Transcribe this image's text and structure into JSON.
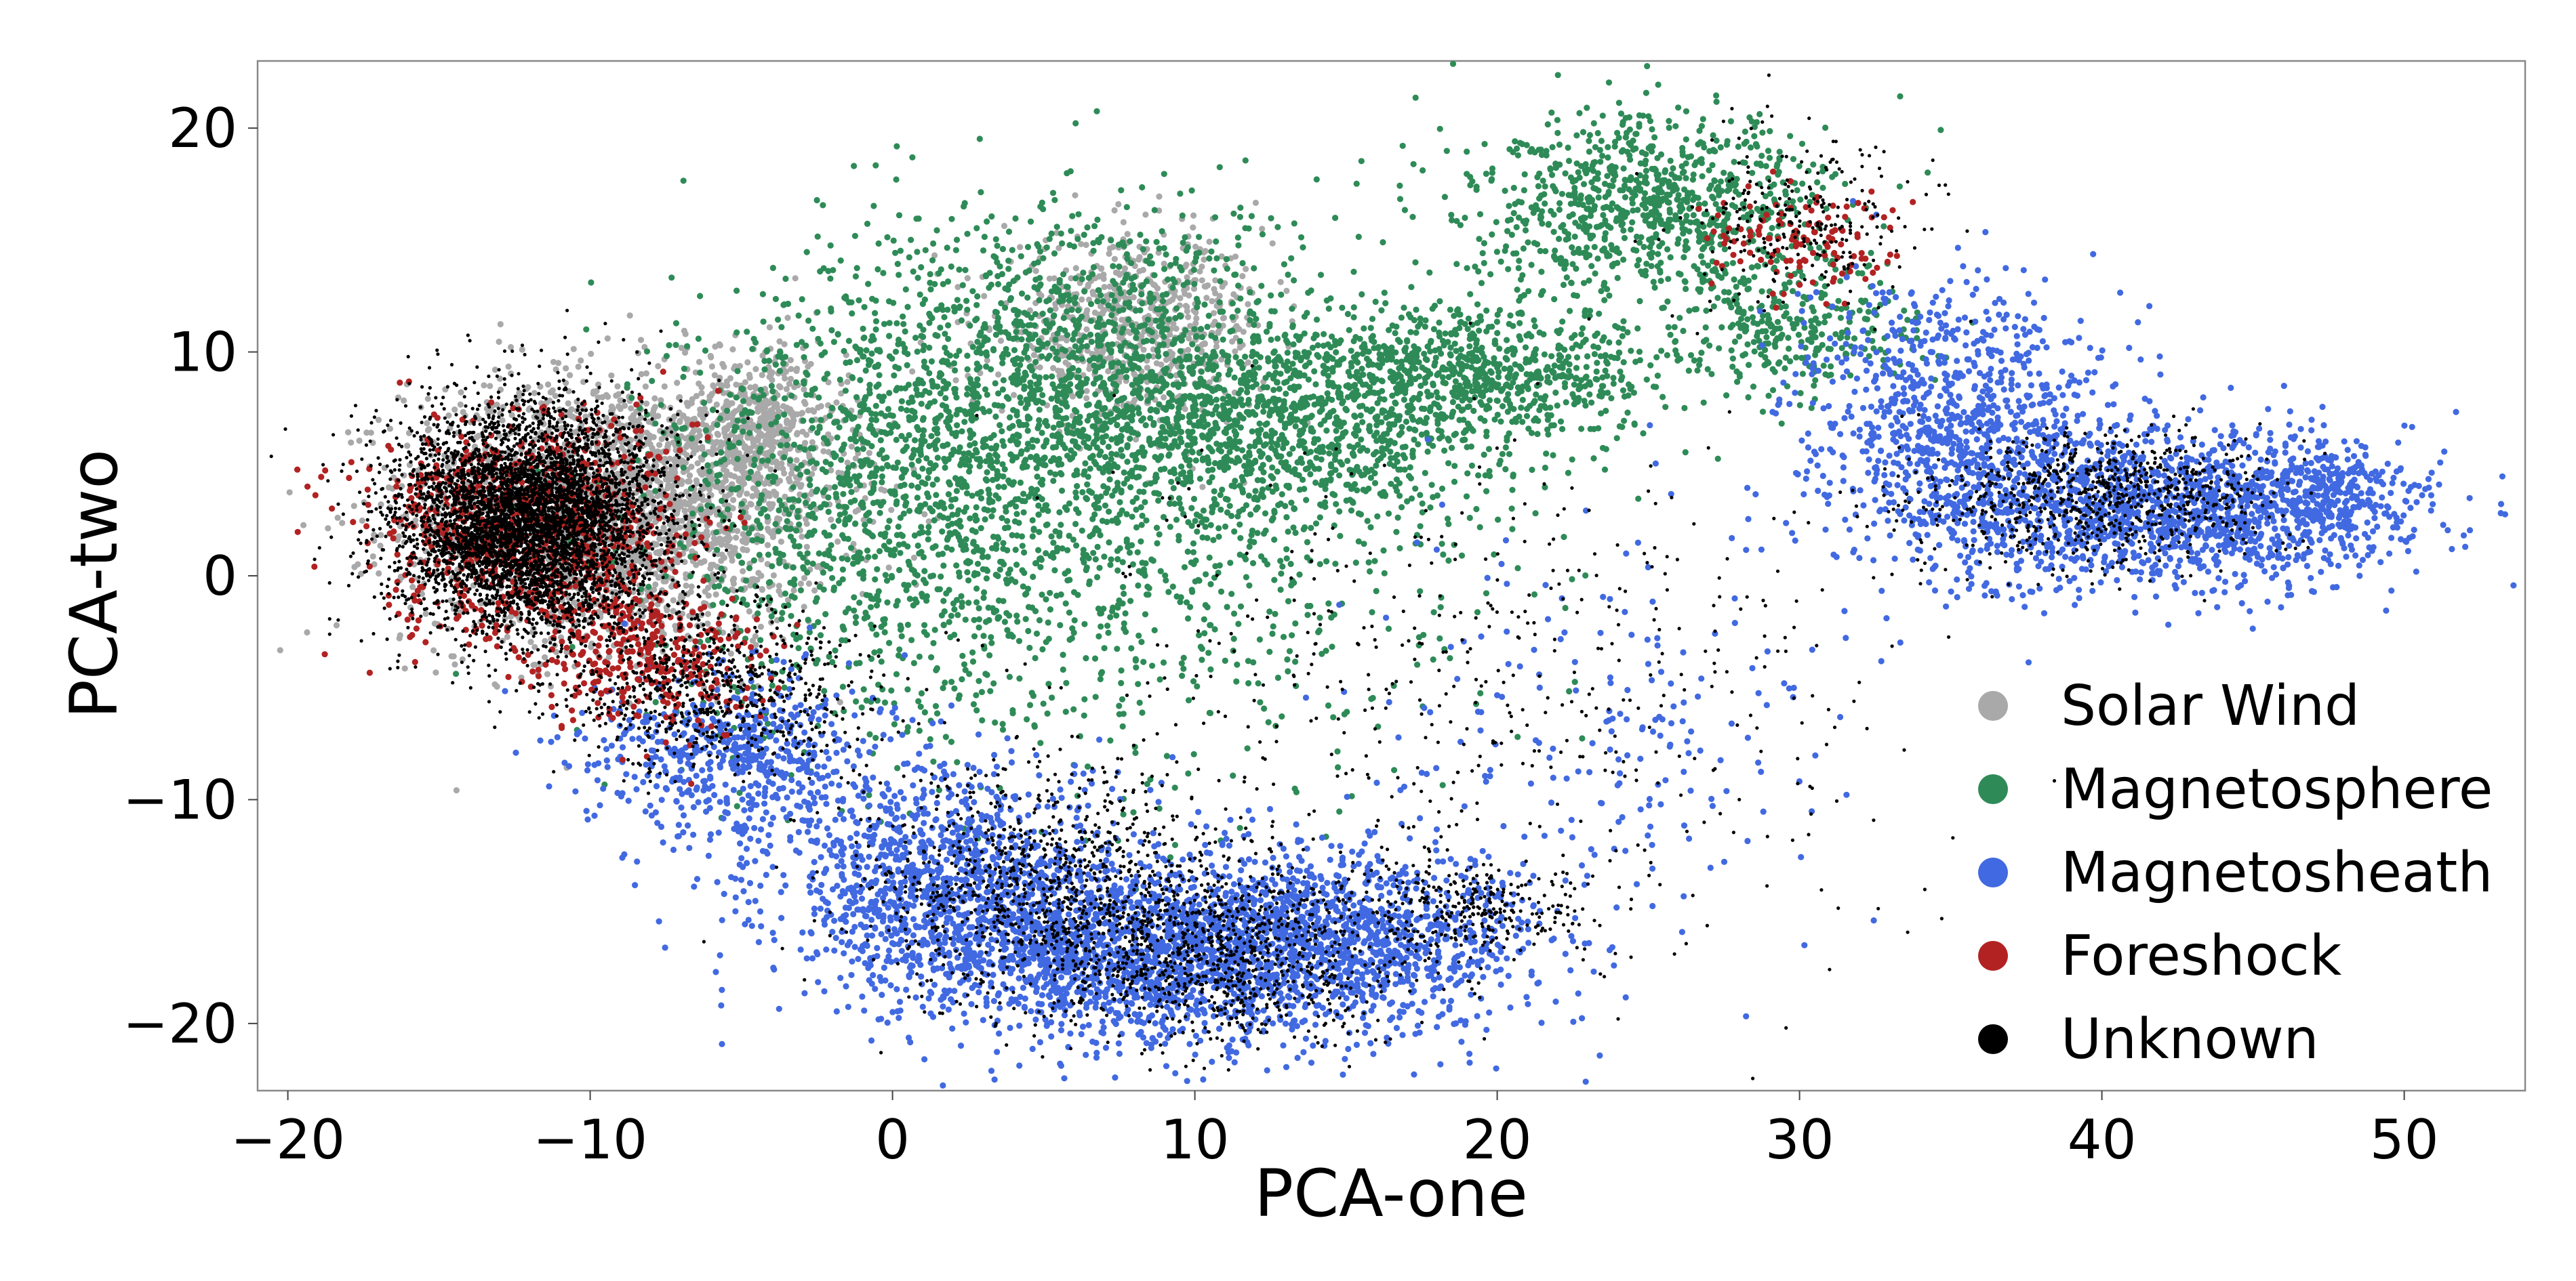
{
  "chart_data": {
    "type": "scatter",
    "title": "",
    "xlabel": "PCA-one",
    "ylabel": "PCA-two",
    "xlim": [
      -21,
      54
    ],
    "ylim": [
      -23,
      23
    ],
    "xticks": [
      -20,
      -10,
      0,
      10,
      20,
      30,
      40,
      50
    ],
    "yticks": [
      -20,
      -10,
      0,
      10,
      20
    ],
    "xtick_labels": [
      "−20",
      "−10",
      "0",
      "10",
      "20",
      "30",
      "40",
      "50"
    ],
    "ytick_labels": [
      "−20",
      "−10",
      "0",
      "10",
      "20"
    ],
    "grid": false,
    "legend_position": "lower-right",
    "series": [
      {
        "name": "Solar Wind",
        "color": "#a9a9a9",
        "clusters": [
          {
            "cx": -9,
            "cy": 3,
            "sx": 3.5,
            "sy": 3,
            "n": 2200
          },
          {
            "cx": -4.5,
            "cy": 6.5,
            "sx": 1.5,
            "sy": 1.8,
            "n": 500
          },
          {
            "cx": 8,
            "cy": 11,
            "sx": 2.2,
            "sy": 2,
            "n": 700
          }
        ]
      },
      {
        "name": "Magnetosphere",
        "color": "#2e8b57",
        "clusters": [
          {
            "cx": 0,
            "cy": 3,
            "sx": 4,
            "sy": 5,
            "n": 1400
          },
          {
            "cx": 6,
            "cy": 9,
            "sx": 4,
            "sy": 4,
            "n": 1300
          },
          {
            "cx": 13,
            "cy": 7,
            "sx": 3.5,
            "sy": 2.5,
            "n": 1100
          },
          {
            "cx": 20,
            "cy": 9,
            "sx": 3,
            "sy": 1.5,
            "n": 700
          },
          {
            "cx": 25,
            "cy": 16.5,
            "sx": 3,
            "sy": 2,
            "n": 900
          },
          {
            "cx": 30,
            "cy": 11,
            "sx": 2,
            "sy": 1.5,
            "n": 300
          },
          {
            "cx": 10,
            "cy": 0,
            "sx": 5,
            "sy": 5,
            "n": 500
          }
        ]
      },
      {
        "name": "Magnetosheath",
        "color": "#4169e1",
        "clusters": [
          {
            "cx": -5,
            "cy": -8,
            "sx": 2.5,
            "sy": 2,
            "n": 600
          },
          {
            "cx": 2,
            "cy": -14,
            "sx": 3,
            "sy": 2.5,
            "n": 1200
          },
          {
            "cx": 9,
            "cy": -17,
            "sx": 4,
            "sy": 2,
            "n": 1800
          },
          {
            "cx": 16,
            "cy": -16,
            "sx": 3,
            "sy": 2,
            "n": 800
          },
          {
            "cx": 35,
            "cy": 7,
            "sx": 2.5,
            "sy": 3,
            "n": 900
          },
          {
            "cx": 42,
            "cy": 3,
            "sx": 4,
            "sy": 1.8,
            "n": 1400
          },
          {
            "cx": 47,
            "cy": 3.5,
            "sx": 1.5,
            "sy": 1.2,
            "n": 300
          },
          {
            "cx": 24,
            "cy": -7,
            "sx": 4,
            "sy": 5,
            "n": 200
          }
        ]
      },
      {
        "name": "Foreshock",
        "color": "#b22222",
        "clusters": [
          {
            "cx": -12,
            "cy": 2,
            "sx": 2.5,
            "sy": 2.5,
            "n": 900
          },
          {
            "cx": -8,
            "cy": -4,
            "sx": 1.8,
            "sy": 1.5,
            "n": 300
          },
          {
            "cx": 30,
            "cy": 15,
            "sx": 1.5,
            "sy": 1.2,
            "n": 120
          }
        ]
      },
      {
        "name": "Unknown",
        "color": "#000000",
        "clusters": [
          {
            "cx": -12,
            "cy": 2.5,
            "sx": 2.2,
            "sy": 2.5,
            "n": 5000
          },
          {
            "cx": -6,
            "cy": -5,
            "sx": 2.5,
            "sy": 2,
            "n": 700
          },
          {
            "cx": 5,
            "cy": -14,
            "sx": 3,
            "sy": 2.5,
            "n": 900
          },
          {
            "cx": 11,
            "cy": -17,
            "sx": 3,
            "sy": 2,
            "n": 900
          },
          {
            "cx": 19,
            "cy": -15,
            "sx": 2,
            "sy": 1.2,
            "n": 300
          },
          {
            "cx": 40,
            "cy": 3.5,
            "sx": 3,
            "sy": 1.5,
            "n": 800
          },
          {
            "cx": 30,
            "cy": 16,
            "sx": 2,
            "sy": 2,
            "n": 250
          },
          {
            "cx": 20,
            "cy": -5,
            "sx": 7,
            "sy": 6,
            "n": 500
          }
        ]
      }
    ]
  }
}
